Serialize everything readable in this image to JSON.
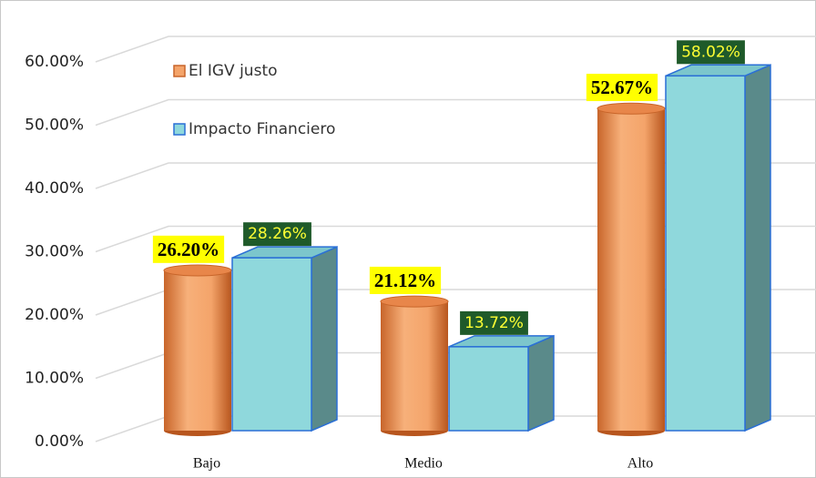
{
  "chart_data": {
    "type": "bar3d",
    "categories": [
      "Bajo",
      "Medio",
      "Alto"
    ],
    "series": [
      {
        "name": "El IGV justo",
        "color": "#f4a46a",
        "values": [
          26.2,
          21.12,
          52.67
        ],
        "value_labels": [
          "26.20%",
          "21.12%",
          "52.67%"
        ]
      },
      {
        "name": "Impacto Financiero",
        "color": "#8fd8dc",
        "values": [
          28.26,
          13.72,
          58.02
        ],
        "value_labels": [
          "28.26%",
          "13.72%",
          "58.02%"
        ]
      }
    ],
    "ylim": [
      0,
      60
    ],
    "yticks": [
      {
        "value": 0,
        "label": "0.00%"
      },
      {
        "value": 10,
        "label": "10.00%"
      },
      {
        "value": 20,
        "label": "20.00%"
      },
      {
        "value": 30,
        "label": "30.00%"
      },
      {
        "value": 40,
        "label": "40.00%"
      },
      {
        "value": 50,
        "label": "50.00%"
      },
      {
        "value": 60,
        "label": "60.00%"
      }
    ],
    "grid": true
  }
}
